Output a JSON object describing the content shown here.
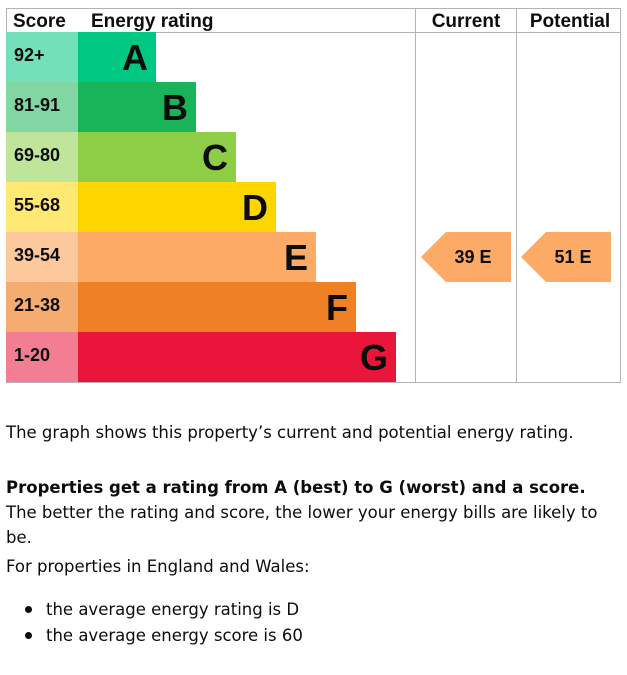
{
  "chart_data": {
    "type": "bar",
    "headers": {
      "score": "Score",
      "rating": "Energy rating",
      "current": "Current",
      "potential": "Potential"
    },
    "bands": [
      {
        "score_range": "92+",
        "letter": "A",
        "color": "#00c781"
      },
      {
        "score_range": "81-91",
        "letter": "B",
        "color": "#19b459"
      },
      {
        "score_range": "69-80",
        "letter": "C",
        "color": "#8dce46"
      },
      {
        "score_range": "55-68",
        "letter": "D",
        "color": "#ffd500"
      },
      {
        "score_range": "39-54",
        "letter": "E",
        "color": "#fcaa65"
      },
      {
        "score_range": "21-38",
        "letter": "F",
        "color": "#ef8023"
      },
      {
        "score_range": "1-20",
        "letter": "G",
        "color": "#e9153b"
      }
    ],
    "current": {
      "score": 39,
      "rating": "E",
      "label": "39  E",
      "color": "#fcaa65"
    },
    "potential": {
      "score": 51,
      "rating": "E",
      "label": "51  E",
      "color": "#fcaa65"
    }
  },
  "text": {
    "intro": "The graph shows this property’s current and potential energy rating.",
    "bold_sentence": "Properties get a rating from A (best) to G (worst) and a score.",
    "rest_sentence": " The better the rating and score, the lower your energy bills are likely to be.",
    "region": "For properties in England and Wales:",
    "bullets": [
      "the average energy rating is D",
      "the average energy score is 60"
    ]
  }
}
